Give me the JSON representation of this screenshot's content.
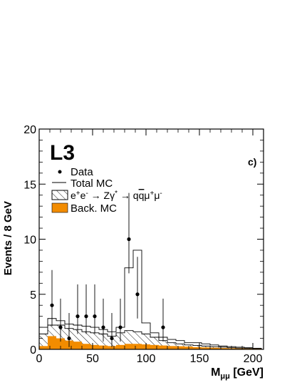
{
  "chart_data": {
    "type": "bar",
    "panel_label": "c)",
    "experiment_label": "L3",
    "xlabel": "M",
    "xlabel_subscript": "μμ",
    "xlabel_unit": " [GeV]",
    "ylabel": "Events / 8 GeV",
    "xlim": [
      0,
      210
    ],
    "ylim": [
      0,
      20
    ],
    "x_ticks": [
      0,
      50,
      100,
      150,
      200
    ],
    "y_ticks": [
      0,
      5,
      10,
      15,
      20
    ],
    "bin_width": 8,
    "bin_edges": [
      0,
      8,
      16,
      24,
      32,
      40,
      48,
      56,
      64,
      72,
      80,
      88,
      96,
      104,
      112,
      120,
      128,
      136,
      144,
      152,
      160,
      168,
      176,
      184,
      192,
      200,
      208
    ],
    "series": [
      {
        "name": "Total MC",
        "style": "line-histogram",
        "values": [
          2.0,
          2.8,
          2.6,
          2.3,
          2.2,
          2.1,
          2.0,
          1.8,
          1.6,
          2.0,
          7.4,
          9.0,
          2.4,
          1.5,
          1.1,
          0.9,
          0.8,
          0.6,
          0.6,
          0.5,
          0.4,
          0.3,
          0.25,
          0.2,
          0.15,
          0.1
        ]
      },
      {
        "name": "e+e- → Zγ* → qq̄μ+μ-",
        "style": "hatched",
        "values": [
          1.4,
          2.2,
          2.2,
          1.9,
          1.8,
          1.6,
          1.5,
          1.4,
          1.2,
          1.5,
          1.7,
          1.6,
          1.4,
          1.1,
          0.8,
          0.6,
          0.5,
          0.4,
          0.35,
          0.3,
          0.25,
          0.2,
          0.15,
          0.12,
          0.1,
          0.07
        ]
      },
      {
        "name": "Back. MC",
        "style": "filled",
        "color": "#f28c00",
        "values": [
          0.3,
          1.2,
          1.0,
          0.8,
          0.7,
          0.5,
          0.4,
          0.35,
          0.3,
          0.4,
          0.5,
          0.5,
          0.45,
          0.4,
          0.35,
          0.3,
          0.28,
          0.25,
          0.2,
          0.18,
          0.15,
          0.12,
          0.1,
          0.08,
          0.06,
          0.05
        ]
      }
    ],
    "data_points": {
      "name": "Data",
      "x": [
        12,
        20,
        28,
        36,
        44,
        52,
        60,
        68,
        76,
        84,
        92,
        116
      ],
      "y": [
        4,
        2,
        1,
        3,
        3,
        3,
        2,
        1,
        2,
        10,
        5,
        2
      ],
      "err_up": [
        3.2,
        2.6,
        2.3,
        2.9,
        2.9,
        2.9,
        2.6,
        2.3,
        2.6,
        4.2,
        3.4,
        2.6
      ],
      "err_down": [
        1.9,
        1.3,
        0.8,
        1.6,
        1.6,
        1.6,
        1.3,
        0.8,
        1.3,
        3.1,
        2.2,
        1.3
      ]
    },
    "legend": {
      "placement": "top-left",
      "entries": [
        {
          "label": "Data",
          "symbol": "point"
        },
        {
          "label": "Total MC",
          "symbol": "line"
        },
        {
          "label": "e+e- → Zγ* → qq̄μ+μ-",
          "symbol": "hatched"
        },
        {
          "label": "Back. MC",
          "symbol": "filled"
        }
      ]
    },
    "colors": {
      "background_mc": "#f28c00",
      "axes": "#000000"
    }
  }
}
